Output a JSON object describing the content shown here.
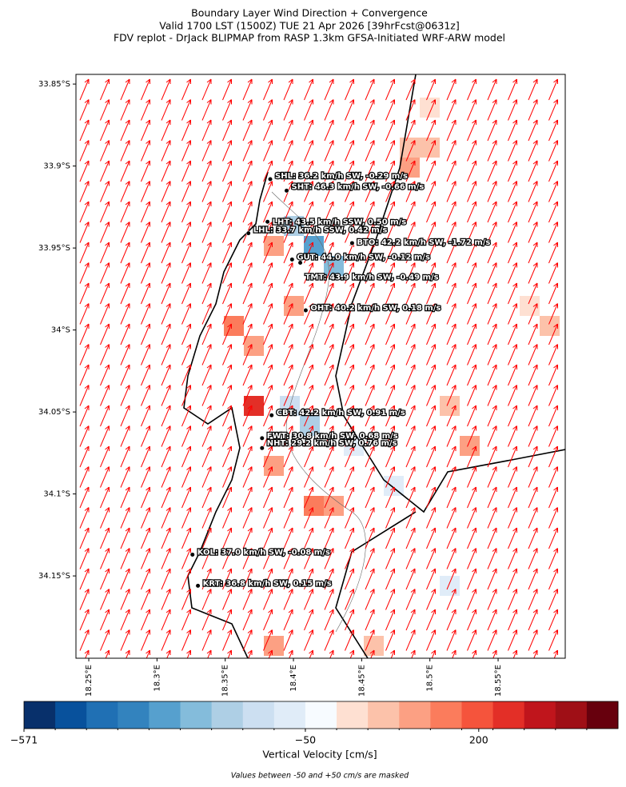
{
  "chart_data": {
    "type": "map",
    "title": [
      "Boundary Layer Wind Direction + Convergence",
      "Valid 1700 LST (1500Z) TUE 21 Apr 2026 [39hrFcst@0631z]",
      "FDV replot - DrJack BLIPMAP from RASP 1.3km GFSA-Initiated WRF-ARW model"
    ],
    "xlim": [
      18.2406,
      18.5992
    ],
    "ylim": [
      33.8441,
      34.2002
    ],
    "xticks": [
      {
        "value": 18.25,
        "label": "18.25°E"
      },
      {
        "value": 18.3,
        "label": "18.3°E"
      },
      {
        "value": 18.35,
        "label": "18.35°E"
      },
      {
        "value": 18.4,
        "label": "18.4°E"
      },
      {
        "value": 18.45,
        "label": "18.45°E"
      },
      {
        "value": 18.5,
        "label": "18.5°E"
      },
      {
        "value": 18.55,
        "label": "18.55°E"
      }
    ],
    "yticks": [
      {
        "value": 33.85,
        "label": "33.85°S"
      },
      {
        "value": 33.9,
        "label": "33.9°S"
      },
      {
        "value": 33.95,
        "label": "33.95°S"
      },
      {
        "value": 34.0,
        "label": "34°S"
      },
      {
        "value": 34.05,
        "label": "34.05°S"
      },
      {
        "value": 34.1,
        "label": "34.1°S"
      },
      {
        "value": 34.15,
        "label": "34.15°S"
      }
    ],
    "stations": [
      {
        "label": "SHL: 36.2 km/h SW, -0.29 m/s",
        "lon": 18.383,
        "lat": 33.908
      },
      {
        "label": "SHT: 46.3 km/h SW, -0.66 m/s",
        "lon": 18.395,
        "lat": 33.915
      },
      {
        "label": "LHT: 43.5 km/h SSW, 0.50 m/s",
        "lon": 18.381,
        "lat": 33.934
      },
      {
        "label": "LHL: 33.7 km/h SSW, 0.42 m/s",
        "lon": 18.367,
        "lat": 33.941
      },
      {
        "label": "BTO: 42.2 km/h SW, -1.72 m/s",
        "lon": 18.443,
        "lat": 33.947
      },
      {
        "label": "GUT: 44.0 km/h SW, -0.12 m/s",
        "lon": 18.399,
        "lat": 33.957
      },
      {
        "label": "TMT: 43.9 km/h SW, -0.49 m/s",
        "lon": 18.405,
        "lat": 33.959
      },
      {
        "label": "OHT: 40.2 km/h SW, 0.18 m/s",
        "lon": 18.409,
        "lat": 33.988
      },
      {
        "label": "CBT: 42.2 km/h SW, 0.91 m/s",
        "lon": 18.384,
        "lat": 34.052
      },
      {
        "label": "FWT: 30.8 km/h SW, 0.68 m/s",
        "lon": 18.377,
        "lat": 34.066
      },
      {
        "label": "NHT: 29.2 km/h SW, 0.76 m/s",
        "lon": 18.377,
        "lat": 34.072
      },
      {
        "label": "KOL: 37.0 km/h SW, -0.08 m/s",
        "lon": 18.326,
        "lat": 34.137
      },
      {
        "label": "KRT: 36.8 km/h SW, 0.15 m/s",
        "lon": 18.33,
        "lat": 34.156
      }
    ],
    "colorbar": {
      "label": "Vertical Velocity [cm/s]",
      "bounds": [
        -571,
        -513.1,
        -455.2,
        -397.3,
        -339.4,
        -281.6,
        -223.7,
        -165.8,
        -107.9,
        -50,
        50,
        83,
        116,
        149,
        182,
        215,
        248,
        281,
        314,
        347
      ],
      "colors": [
        "#08306b",
        "#08519c",
        "#2070b4",
        "#3383be",
        "#56a0ce",
        "#84bcdb",
        "#aecfe5",
        "#ccdff1",
        "#e0ecf8",
        "#f7fbff",
        "#fee0d2",
        "#fcc2aa",
        "#fca083",
        "#fb7c5c",
        "#f5543c",
        "#e32f27",
        "#c0151c",
        "#9f0f16",
        "#67000d"
      ],
      "ticks": [
        {
          "value": -571,
          "label": "−571"
        },
        {
          "value": -50,
          "label": "−50"
        },
        {
          "value": 200,
          "label": "200"
        }
      ]
    },
    "note": "Values between -50 and +50 cm/s are masked",
    "arrow_color": "#ff0000"
  }
}
